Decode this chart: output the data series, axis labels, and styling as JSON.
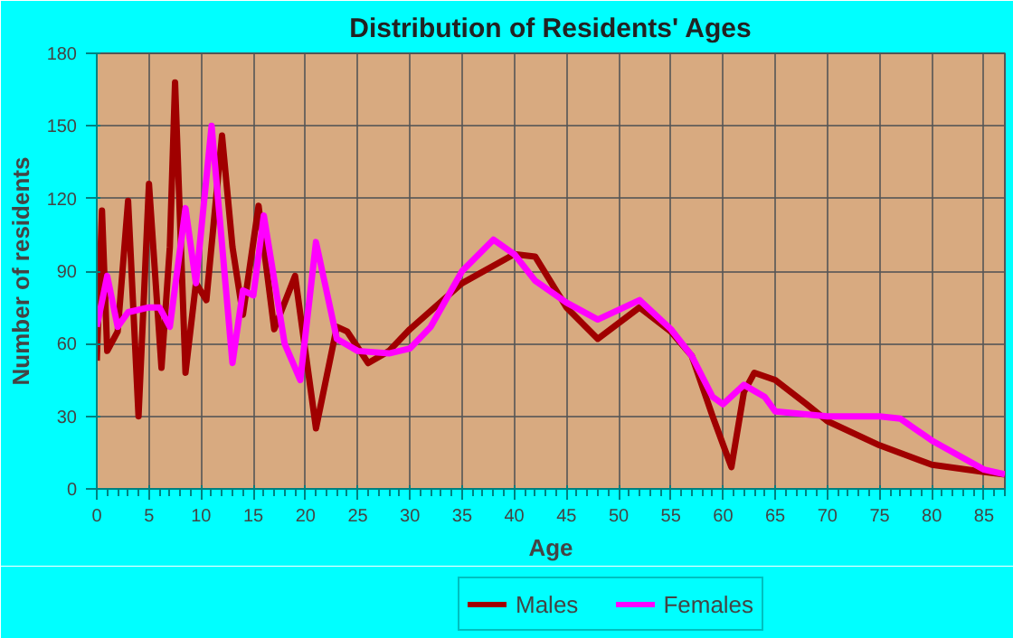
{
  "chart_data": {
    "type": "line",
    "title": "Distribution of Residents' Ages",
    "xlabel": "Age",
    "ylabel": "Number of residents",
    "xlim": [
      0,
      87
    ],
    "ylim": [
      0,
      180
    ],
    "xticks": [
      0,
      5,
      10,
      15,
      20,
      25,
      30,
      35,
      40,
      45,
      50,
      55,
      60,
      65,
      70,
      75,
      80,
      85
    ],
    "yticks": [
      0,
      30,
      60,
      90,
      120,
      150,
      180
    ],
    "grid": true,
    "legend": "bottom",
    "series": [
      {
        "name": "Males",
        "color": "#a00000",
        "x": [
          0,
          0.5,
          1,
          2,
          3,
          4,
          5,
          6.2,
          7,
          7.5,
          8.5,
          9.5,
          10.5,
          12,
          13,
          14,
          15.5,
          17,
          19,
          21,
          23,
          24,
          26,
          28,
          30,
          35,
          40,
          42,
          45,
          48,
          52,
          55,
          57,
          59,
          60.8,
          62,
          63,
          65,
          68,
          70,
          75,
          80,
          85,
          87
        ],
        "values": [
          53,
          115,
          57,
          65,
          119,
          30,
          126,
          50,
          100,
          168,
          48,
          85,
          78,
          146,
          100,
          72,
          117,
          66,
          88,
          25,
          67,
          65,
          52,
          57,
          66,
          85,
          97,
          96,
          75,
          62,
          75,
          65,
          55,
          30,
          9,
          40,
          48,
          45,
          35,
          28,
          18,
          10,
          7,
          6
        ]
      },
      {
        "name": "Females",
        "color": "#ff00ff",
        "x": [
          0,
          1,
          2,
          3,
          5,
          6,
          7,
          8.5,
          9.5,
          11,
          13,
          14,
          15,
          16,
          18,
          19.5,
          21,
          23,
          25,
          28,
          30,
          32,
          35,
          38,
          40,
          42,
          45,
          48,
          52,
          55,
          57,
          59,
          60,
          62,
          64,
          65,
          70,
          75,
          77,
          80,
          85,
          87
        ],
        "values": [
          67,
          88,
          67,
          73,
          75,
          75,
          67,
          116,
          85,
          150,
          52,
          82,
          80,
          113,
          60,
          45,
          102,
          62,
          57,
          56,
          58,
          67,
          90,
          103,
          97,
          86,
          77,
          70,
          78,
          66,
          55,
          38,
          35,
          43,
          38,
          32,
          30,
          30,
          29,
          20,
          8,
          6
        ]
      }
    ]
  }
}
